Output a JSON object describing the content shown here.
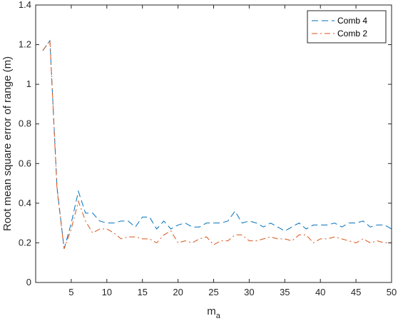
{
  "chart_data": {
    "type": "line",
    "title": "",
    "xlabel_base": "m",
    "xlabel_sub": "a",
    "ylabel": "Root mean square error of range (m)",
    "xlim": [
      0,
      50
    ],
    "ylim": [
      0,
      1.4
    ],
    "xticks": [
      5,
      10,
      15,
      20,
      25,
      30,
      35,
      40,
      45,
      50
    ],
    "yticks": [
      0,
      0.2,
      0.4,
      0.6,
      0.8,
      1,
      1.2,
      1.4
    ],
    "grid": false,
    "legend_position": "top-right",
    "x": [
      1,
      2,
      3,
      4,
      5,
      6,
      7,
      8,
      9,
      10,
      11,
      12,
      13,
      14,
      15,
      16,
      17,
      18,
      19,
      20,
      21,
      22,
      23,
      24,
      25,
      26,
      27,
      28,
      29,
      30,
      31,
      32,
      33,
      34,
      35,
      36,
      37,
      38,
      39,
      40,
      41,
      42,
      43,
      44,
      45,
      46,
      47,
      48,
      49,
      50
    ],
    "series": [
      {
        "name": "Comb 4",
        "color": "#0072BD",
        "dash": "dashed",
        "values": [
          1.17,
          1.22,
          0.48,
          0.17,
          0.3,
          0.46,
          0.35,
          0.35,
          0.31,
          0.3,
          0.3,
          0.31,
          0.31,
          0.28,
          0.33,
          0.33,
          0.27,
          0.31,
          0.27,
          0.29,
          0.3,
          0.28,
          0.28,
          0.3,
          0.3,
          0.3,
          0.31,
          0.36,
          0.3,
          0.31,
          0.3,
          0.28,
          0.3,
          0.28,
          0.26,
          0.28,
          0.3,
          0.27,
          0.29,
          0.29,
          0.29,
          0.3,
          0.28,
          0.3,
          0.3,
          0.31,
          0.28,
          0.29,
          0.29,
          0.27
        ]
      },
      {
        "name": "Comb 2",
        "color": "#D95319",
        "dash": "dashdot",
        "values": [
          1.17,
          1.22,
          0.47,
          0.17,
          0.27,
          0.41,
          0.31,
          0.25,
          0.27,
          0.27,
          0.25,
          0.22,
          0.23,
          0.23,
          0.22,
          0.22,
          0.2,
          0.24,
          0.26,
          0.2,
          0.21,
          0.2,
          0.22,
          0.23,
          0.19,
          0.21,
          0.21,
          0.24,
          0.24,
          0.21,
          0.21,
          0.22,
          0.23,
          0.22,
          0.22,
          0.21,
          0.24,
          0.24,
          0.2,
          0.22,
          0.22,
          0.23,
          0.22,
          0.21,
          0.2,
          0.22,
          0.2,
          0.21,
          0.2,
          0.2
        ]
      }
    ]
  }
}
